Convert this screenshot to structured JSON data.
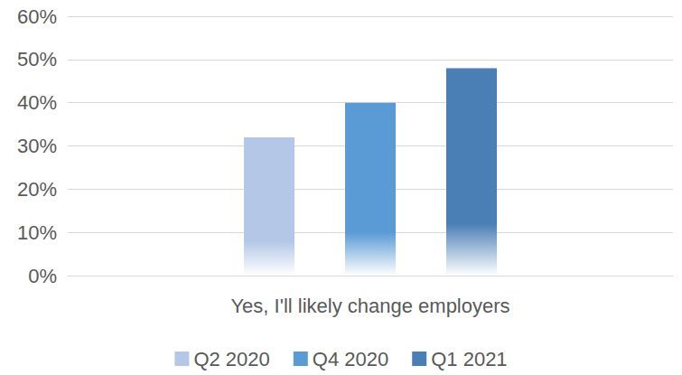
{
  "chart_data": {
    "type": "bar",
    "categories": [
      "Yes, I'll likely change employers"
    ],
    "series": [
      {
        "name": "Q2 2020",
        "color": "#b4c7e7",
        "values": [
          32
        ]
      },
      {
        "name": "Q4 2020",
        "color": "#5b9bd5",
        "values": [
          40
        ]
      },
      {
        "name": "Q1 2021",
        "color": "#4a7fb5",
        "values": [
          48
        ]
      }
    ],
    "ylim": [
      0,
      60
    ],
    "yticks": [
      {
        "value": 0,
        "label": "0%"
      },
      {
        "value": 10,
        "label": "10%"
      },
      {
        "value": 20,
        "label": "20%"
      },
      {
        "value": 30,
        "label": "30%"
      },
      {
        "value": 40,
        "label": "40%"
      },
      {
        "value": 50,
        "label": "50%"
      },
      {
        "value": 60,
        "label": "60%"
      }
    ],
    "grid": true,
    "legend": "bottom"
  }
}
